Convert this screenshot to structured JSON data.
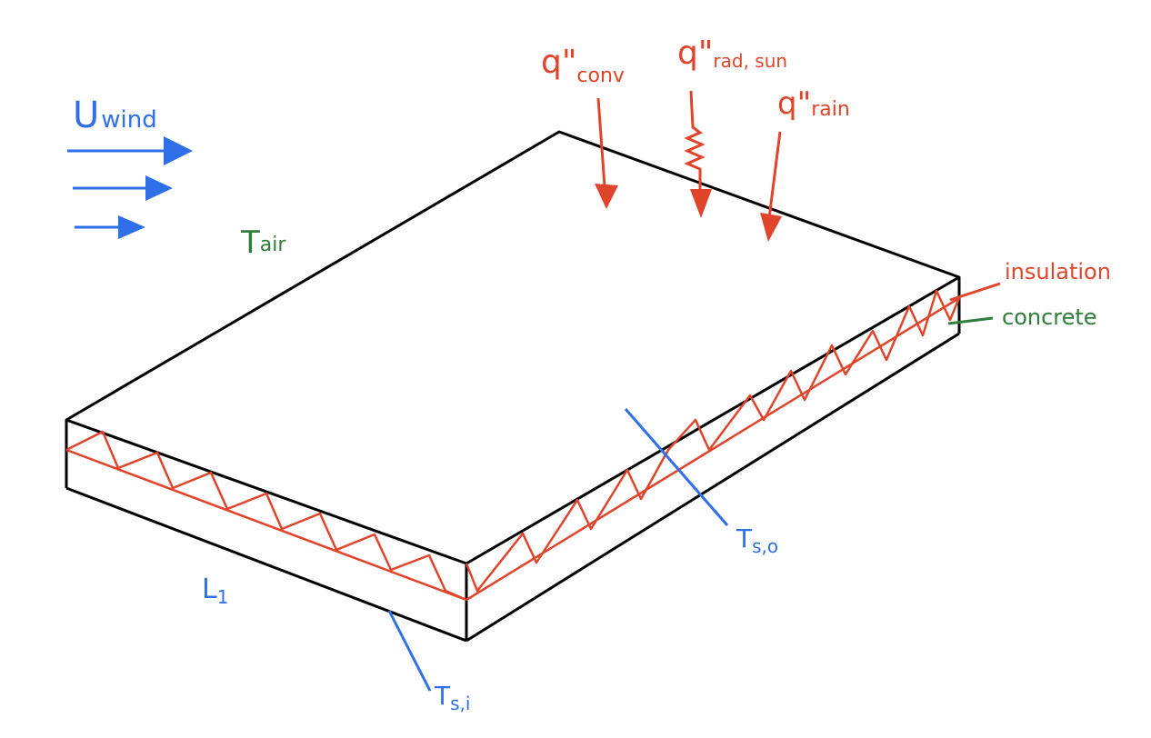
{
  "colors": {
    "outline": "#000000",
    "heat_flux": "#e0452b",
    "air": "#2e7d3a",
    "wind": "#2f6fe8"
  },
  "labels": {
    "q_conv": {
      "main": "q\"",
      "sub": "conv"
    },
    "q_rad_sun": {
      "main": "q\"",
      "sub": "rad, sun"
    },
    "q_rain": {
      "main": "q\"",
      "sub": "rain"
    },
    "u_wind": {
      "main": "U",
      "sub": "wind"
    },
    "t_air": {
      "main": "T",
      "sub": "air"
    },
    "insulation": "insulation",
    "concrete": "concrete",
    "t_s_o": {
      "main": "T",
      "sub": "s,o"
    },
    "t_s_i": {
      "main": "T",
      "sub": "s,i"
    },
    "l1": {
      "main": "L",
      "sub": "1"
    }
  }
}
